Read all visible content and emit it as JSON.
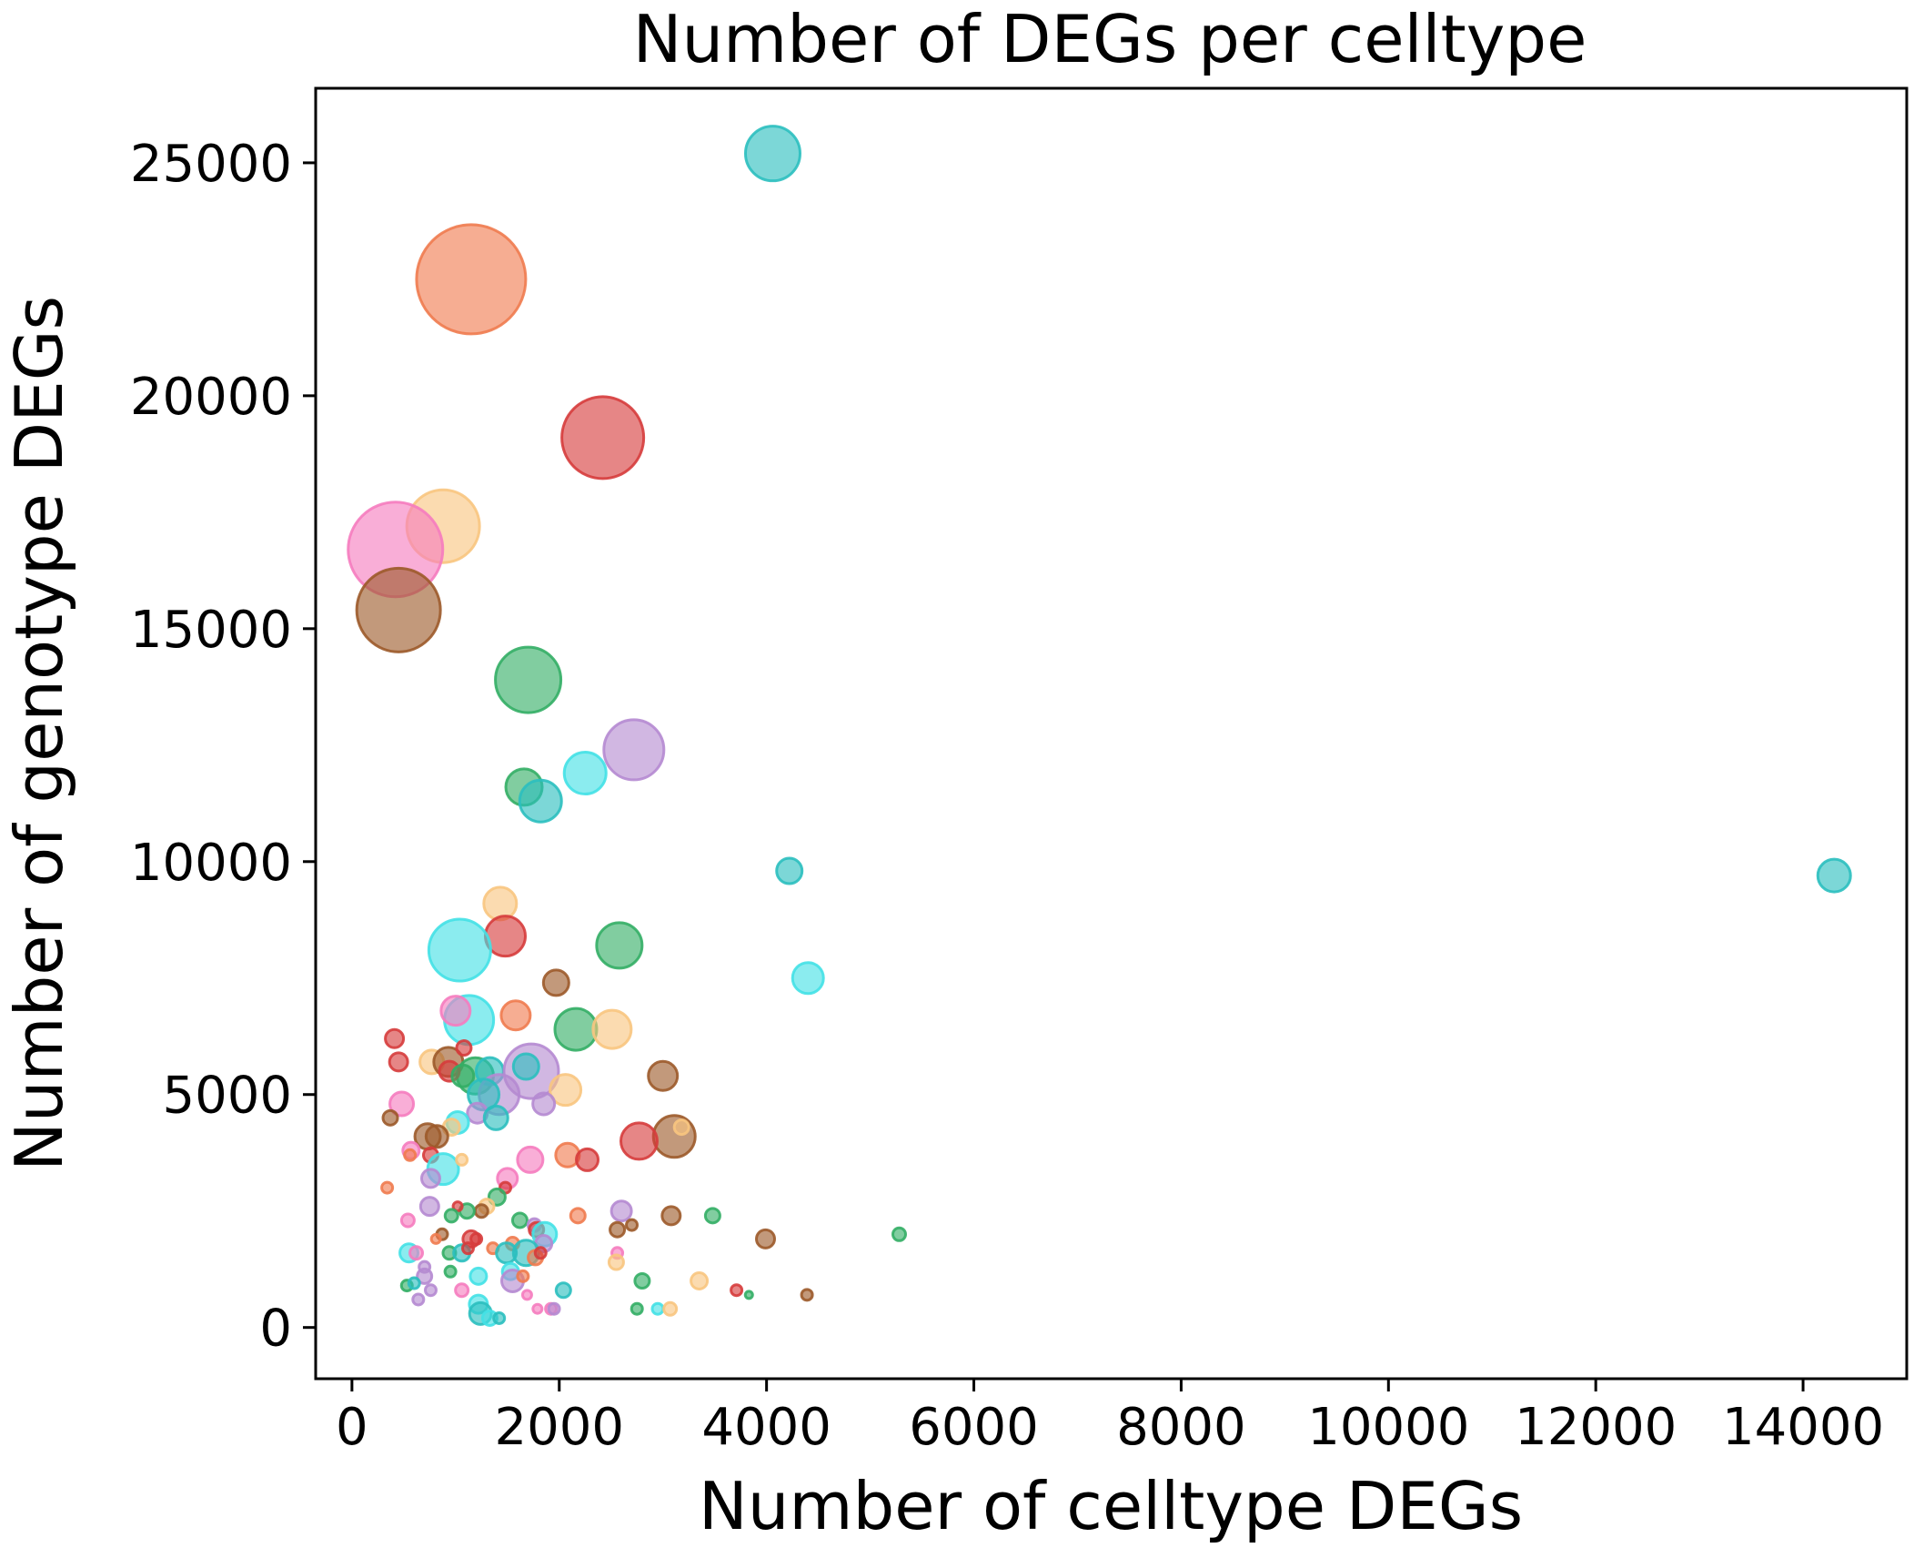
{
  "chart_data": {
    "type": "scatter",
    "title": "Number of DEGs per celltype",
    "xlabel": "Number of celltype DEGs",
    "ylabel": "Number of genotype DEGs",
    "xlim": [
      -350,
      15000
    ],
    "ylim": [
      -1100,
      26600
    ],
    "xticks": [
      0,
      2000,
      4000,
      6000,
      8000,
      10000,
      12000,
      14000
    ],
    "yticks": [
      0,
      5000,
      10000,
      15000,
      20000,
      25000
    ],
    "x_tick_labels": [
      "0",
      "2000",
      "4000",
      "6000",
      "8000",
      "10000",
      "12000",
      "14000"
    ],
    "y_tick_labels": [
      "0",
      "5000",
      "10000",
      "15000",
      "20000",
      "25000"
    ],
    "grid": false,
    "legend": "none",
    "marker_size_encoding": "bubble area",
    "palette": {
      "teal": "#2bbfbf",
      "orange": "#f07b4f",
      "red": "#d63c3c",
      "pink": "#f57cbf",
      "peach": "#f8c57f",
      "brown": "#9c5a2a",
      "green": "#33ae65",
      "purple": "#b58ad1",
      "cyan": "#43e1e5"
    },
    "points": [
      {
        "x": 4060,
        "y": 25200,
        "size": 30,
        "color": "teal"
      },
      {
        "x": 1150,
        "y": 22500,
        "size": 60,
        "color": "orange"
      },
      {
        "x": 2420,
        "y": 19100,
        "size": 45,
        "color": "red"
      },
      {
        "x": 880,
        "y": 17200,
        "size": 40,
        "color": "peach"
      },
      {
        "x": 420,
        "y": 16700,
        "size": 52,
        "color": "pink"
      },
      {
        "x": 450,
        "y": 15400,
        "size": 46,
        "color": "brown"
      },
      {
        "x": 1700,
        "y": 13900,
        "size": 36,
        "color": "green"
      },
      {
        "x": 2720,
        "y": 12400,
        "size": 33,
        "color": "purple"
      },
      {
        "x": 2250,
        "y": 11900,
        "size": 23,
        "color": "cyan"
      },
      {
        "x": 1660,
        "y": 11600,
        "size": 20,
        "color": "green"
      },
      {
        "x": 1820,
        "y": 11300,
        "size": 23,
        "color": "teal"
      },
      {
        "x": 4220,
        "y": 9800,
        "size": 14,
        "color": "teal"
      },
      {
        "x": 14300,
        "y": 9700,
        "size": 18,
        "color": "teal"
      },
      {
        "x": 1430,
        "y": 9100,
        "size": 18,
        "color": "peach"
      },
      {
        "x": 1480,
        "y": 8400,
        "size": 22,
        "color": "red"
      },
      {
        "x": 1040,
        "y": 8100,
        "size": 34,
        "color": "cyan"
      },
      {
        "x": 2580,
        "y": 8200,
        "size": 25,
        "color": "green"
      },
      {
        "x": 4400,
        "y": 7500,
        "size": 17,
        "color": "cyan"
      },
      {
        "x": 1970,
        "y": 7400,
        "size": 14,
        "color": "brown"
      },
      {
        "x": 1580,
        "y": 6700,
        "size": 16,
        "color": "orange"
      },
      {
        "x": 1130,
        "y": 6600,
        "size": 27,
        "color": "cyan"
      },
      {
        "x": 1000,
        "y": 6800,
        "size": 16,
        "color": "pink"
      },
      {
        "x": 2160,
        "y": 6400,
        "size": 23,
        "color": "green"
      },
      {
        "x": 2510,
        "y": 6400,
        "size": 21,
        "color": "peach"
      },
      {
        "x": 410,
        "y": 6200,
        "size": 10,
        "color": "red"
      },
      {
        "x": 450,
        "y": 5700,
        "size": 10,
        "color": "red"
      },
      {
        "x": 770,
        "y": 5700,
        "size": 13,
        "color": "peach"
      },
      {
        "x": 930,
        "y": 5700,
        "size": 16,
        "color": "brown"
      },
      {
        "x": 1080,
        "y": 6000,
        "size": 8,
        "color": "red"
      },
      {
        "x": 1190,
        "y": 5400,
        "size": 20,
        "color": "green"
      },
      {
        "x": 1330,
        "y": 5500,
        "size": 15,
        "color": "teal"
      },
      {
        "x": 1730,
        "y": 5500,
        "size": 30,
        "color": "purple"
      },
      {
        "x": 1680,
        "y": 5600,
        "size": 14,
        "color": "teal"
      },
      {
        "x": 2060,
        "y": 5100,
        "size": 17,
        "color": "peach"
      },
      {
        "x": 3000,
        "y": 5400,
        "size": 16,
        "color": "brown"
      },
      {
        "x": 940,
        "y": 5500,
        "size": 11,
        "color": "red"
      },
      {
        "x": 1070,
        "y": 5400,
        "size": 12,
        "color": "green"
      },
      {
        "x": 480,
        "y": 4800,
        "size": 13,
        "color": "pink"
      },
      {
        "x": 1850,
        "y": 4800,
        "size": 12,
        "color": "purple"
      },
      {
        "x": 1420,
        "y": 5000,
        "size": 22,
        "color": "purple"
      },
      {
        "x": 1270,
        "y": 5000,
        "size": 17,
        "color": "teal"
      },
      {
        "x": 1210,
        "y": 4600,
        "size": 11,
        "color": "purple"
      },
      {
        "x": 1390,
        "y": 4500,
        "size": 13,
        "color": "teal"
      },
      {
        "x": 370,
        "y": 4500,
        "size": 8,
        "color": "brown"
      },
      {
        "x": 1020,
        "y": 4400,
        "size": 12,
        "color": "cyan"
      },
      {
        "x": 960,
        "y": 4300,
        "size": 9,
        "color": "peach"
      },
      {
        "x": 730,
        "y": 4100,
        "size": 14,
        "color": "brown"
      },
      {
        "x": 820,
        "y": 4100,
        "size": 12,
        "color": "brown"
      },
      {
        "x": 3110,
        "y": 4100,
        "size": 23,
        "color": "brown"
      },
      {
        "x": 3180,
        "y": 4300,
        "size": 8,
        "color": "peach"
      },
      {
        "x": 2770,
        "y": 4000,
        "size": 20,
        "color": "red"
      },
      {
        "x": 2080,
        "y": 3700,
        "size": 13,
        "color": "orange"
      },
      {
        "x": 2270,
        "y": 3600,
        "size": 12,
        "color": "red"
      },
      {
        "x": 1720,
        "y": 3600,
        "size": 14,
        "color": "pink"
      },
      {
        "x": 570,
        "y": 3800,
        "size": 9,
        "color": "pink"
      },
      {
        "x": 560,
        "y": 3700,
        "size": 6,
        "color": "orange"
      },
      {
        "x": 760,
        "y": 3700,
        "size": 8,
        "color": "red"
      },
      {
        "x": 880,
        "y": 3400,
        "size": 17,
        "color": "cyan"
      },
      {
        "x": 760,
        "y": 3200,
        "size": 10,
        "color": "purple"
      },
      {
        "x": 1500,
        "y": 3200,
        "size": 11,
        "color": "pink"
      },
      {
        "x": 1480,
        "y": 3000,
        "size": 6,
        "color": "red"
      },
      {
        "x": 340,
        "y": 3000,
        "size": 6,
        "color": "orange"
      },
      {
        "x": 1060,
        "y": 3600,
        "size": 6,
        "color": "peach"
      },
      {
        "x": 1400,
        "y": 2800,
        "size": 9,
        "color": "green"
      },
      {
        "x": 1300,
        "y": 2600,
        "size": 8,
        "color": "peach"
      },
      {
        "x": 1250,
        "y": 2500,
        "size": 7,
        "color": "brown"
      },
      {
        "x": 1110,
        "y": 2500,
        "size": 8,
        "color": "green"
      },
      {
        "x": 1020,
        "y": 2600,
        "size": 5,
        "color": "red"
      },
      {
        "x": 750,
        "y": 2600,
        "size": 10,
        "color": "purple"
      },
      {
        "x": 540,
        "y": 2300,
        "size": 7,
        "color": "pink"
      },
      {
        "x": 960,
        "y": 2400,
        "size": 7,
        "color": "green"
      },
      {
        "x": 1620,
        "y": 2300,
        "size": 8,
        "color": "green"
      },
      {
        "x": 1760,
        "y": 2200,
        "size": 7,
        "color": "purple"
      },
      {
        "x": 2180,
        "y": 2400,
        "size": 8,
        "color": "orange"
      },
      {
        "x": 2600,
        "y": 2500,
        "size": 11,
        "color": "purple"
      },
      {
        "x": 2700,
        "y": 2200,
        "size": 6,
        "color": "brown"
      },
      {
        "x": 2560,
        "y": 2100,
        "size": 8,
        "color": "brown"
      },
      {
        "x": 3080,
        "y": 2400,
        "size": 10,
        "color": "brown"
      },
      {
        "x": 3480,
        "y": 2400,
        "size": 8,
        "color": "green"
      },
      {
        "x": 5280,
        "y": 2000,
        "size": 7,
        "color": "green"
      },
      {
        "x": 3990,
        "y": 1900,
        "size": 10,
        "color": "brown"
      },
      {
        "x": 1780,
        "y": 2100,
        "size": 8,
        "color": "red"
      },
      {
        "x": 1860,
        "y": 2000,
        "size": 13,
        "color": "cyan"
      },
      {
        "x": 1850,
        "y": 1800,
        "size": 9,
        "color": "purple"
      },
      {
        "x": 1550,
        "y": 1800,
        "size": 7,
        "color": "orange"
      },
      {
        "x": 1150,
        "y": 1900,
        "size": 9,
        "color": "red"
      },
      {
        "x": 1200,
        "y": 1900,
        "size": 6,
        "color": "red"
      },
      {
        "x": 870,
        "y": 2000,
        "size": 6,
        "color": "brown"
      },
      {
        "x": 810,
        "y": 1900,
        "size": 5,
        "color": "orange"
      },
      {
        "x": 550,
        "y": 1600,
        "size": 10,
        "color": "cyan"
      },
      {
        "x": 620,
        "y": 1600,
        "size": 7,
        "color": "pink"
      },
      {
        "x": 940,
        "y": 1600,
        "size": 7,
        "color": "green"
      },
      {
        "x": 1060,
        "y": 1600,
        "size": 9,
        "color": "teal"
      },
      {
        "x": 1120,
        "y": 1700,
        "size": 6,
        "color": "red"
      },
      {
        "x": 1360,
        "y": 1700,
        "size": 6,
        "color": "orange"
      },
      {
        "x": 1490,
        "y": 1600,
        "size": 11,
        "color": "teal"
      },
      {
        "x": 1680,
        "y": 1600,
        "size": 14,
        "color": "teal"
      },
      {
        "x": 1770,
        "y": 1500,
        "size": 8,
        "color": "orange"
      },
      {
        "x": 1820,
        "y": 1600,
        "size": 6,
        "color": "red"
      },
      {
        "x": 2560,
        "y": 1600,
        "size": 6,
        "color": "pink"
      },
      {
        "x": 2550,
        "y": 1400,
        "size": 8,
        "color": "peach"
      },
      {
        "x": 700,
        "y": 1300,
        "size": 6,
        "color": "purple"
      },
      {
        "x": 700,
        "y": 1100,
        "size": 8,
        "color": "purple"
      },
      {
        "x": 950,
        "y": 1200,
        "size": 6,
        "color": "green"
      },
      {
        "x": 1220,
        "y": 1100,
        "size": 9,
        "color": "cyan"
      },
      {
        "x": 1530,
        "y": 1200,
        "size": 9,
        "color": "cyan"
      },
      {
        "x": 1550,
        "y": 1000,
        "size": 12,
        "color": "purple"
      },
      {
        "x": 1650,
        "y": 1100,
        "size": 6,
        "color": "orange"
      },
      {
        "x": 530,
        "y": 900,
        "size": 6,
        "color": "green"
      },
      {
        "x": 600,
        "y": 950,
        "size": 6,
        "color": "teal"
      },
      {
        "x": 760,
        "y": 800,
        "size": 6,
        "color": "purple"
      },
      {
        "x": 1060,
        "y": 800,
        "size": 7,
        "color": "pink"
      },
      {
        "x": 1690,
        "y": 700,
        "size": 5,
        "color": "pink"
      },
      {
        "x": 2040,
        "y": 800,
        "size": 8,
        "color": "teal"
      },
      {
        "x": 2800,
        "y": 1000,
        "size": 8,
        "color": "green"
      },
      {
        "x": 3350,
        "y": 1000,
        "size": 9,
        "color": "peach"
      },
      {
        "x": 3710,
        "y": 800,
        "size": 6,
        "color": "red"
      },
      {
        "x": 3830,
        "y": 700,
        "size": 4,
        "color": "green"
      },
      {
        "x": 4390,
        "y": 700,
        "size": 6,
        "color": "brown"
      },
      {
        "x": 640,
        "y": 600,
        "size": 6,
        "color": "purple"
      },
      {
        "x": 1220,
        "y": 500,
        "size": 10,
        "color": "cyan"
      },
      {
        "x": 1240,
        "y": 300,
        "size": 12,
        "color": "teal"
      },
      {
        "x": 1330,
        "y": 200,
        "size": 8,
        "color": "cyan"
      },
      {
        "x": 1420,
        "y": 200,
        "size": 6,
        "color": "teal"
      },
      {
        "x": 1790,
        "y": 400,
        "size": 5,
        "color": "pink"
      },
      {
        "x": 1920,
        "y": 400,
        "size": 6,
        "color": "pink"
      },
      {
        "x": 1950,
        "y": 400,
        "size": 6,
        "color": "purple"
      },
      {
        "x": 2750,
        "y": 400,
        "size": 6,
        "color": "green"
      },
      {
        "x": 2950,
        "y": 400,
        "size": 6,
        "color": "cyan"
      },
      {
        "x": 3070,
        "y": 400,
        "size": 7,
        "color": "peach"
      }
    ]
  }
}
